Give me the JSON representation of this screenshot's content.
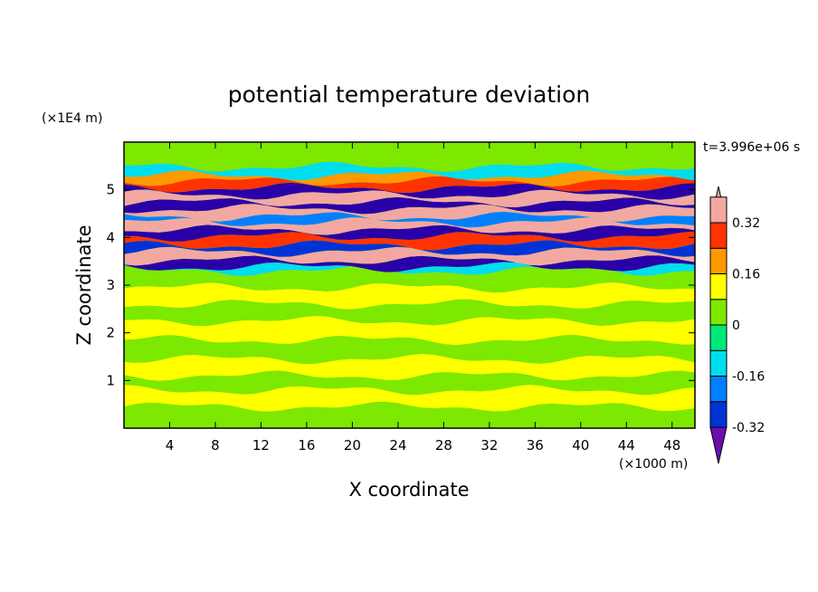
{
  "chart_data": {
    "type": "heatmap",
    "title": "potential temperature deviation",
    "time_label": "t=3.996e+06 s",
    "xlabel": "X coordinate",
    "ylabel": "Z coordinate",
    "x_unit": "(×1000 m)",
    "y_unit": "(×1E4 m)",
    "xlim": [
      0,
      50
    ],
    "ylim": [
      0,
      6
    ],
    "x_ticks": [
      "4",
      "8",
      "12",
      "16",
      "20",
      "24",
      "28",
      "32",
      "36",
      "40",
      "44",
      "48"
    ],
    "y_ticks": [
      "1",
      "2",
      "3",
      "4",
      "5"
    ],
    "colorbar": {
      "levels": [
        -0.4,
        -0.32,
        -0.24,
        -0.16,
        -0.08,
        0,
        0.08,
        0.16,
        0.24,
        0.32,
        0.4
      ],
      "labels": [
        "0.32",
        "0.16",
        "0",
        "-0.16",
        "-0.32"
      ],
      "label_values": [
        0.32,
        0.16,
        0,
        -0.16,
        -0.32
      ],
      "colors": [
        "#6a0fae",
        "#2a00a8",
        "#0033d6",
        "#0080ff",
        "#00ddee",
        "#00e87a",
        "#7de800",
        "#ffff00",
        "#ff9900",
        "#ff3300",
        "#f2a8a0"
      ],
      "extend": "both"
    },
    "bands": [
      {
        "z": 0.0,
        "h": 0.45,
        "v": 0.04
      },
      {
        "z": 0.45,
        "h": 0.35,
        "v": 0.1
      },
      {
        "z": 0.8,
        "h": 0.3,
        "v": 0.03
      },
      {
        "z": 1.1,
        "h": 0.35,
        "v": 0.1
      },
      {
        "z": 1.45,
        "h": 0.4,
        "v": 0.03
      },
      {
        "z": 1.85,
        "h": 0.4,
        "v": 0.1
      },
      {
        "z": 2.25,
        "h": 0.35,
        "v": 0.04
      },
      {
        "z": 2.6,
        "h": 0.35,
        "v": 0.1
      },
      {
        "z": 2.95,
        "h": 0.35,
        "v": 0.04
      },
      {
        "z": 3.3,
        "h": 0.08,
        "v": -0.12
      },
      {
        "z": 3.38,
        "h": 0.14,
        "v": -0.38
      },
      {
        "z": 3.52,
        "h": 0.18,
        "v": 0.42
      },
      {
        "z": 3.7,
        "h": 0.14,
        "v": -0.3
      },
      {
        "z": 3.84,
        "h": 0.18,
        "v": 0.3
      },
      {
        "z": 4.02,
        "h": 0.14,
        "v": -0.38
      },
      {
        "z": 4.16,
        "h": 0.16,
        "v": 0.42
      },
      {
        "z": 4.32,
        "h": 0.12,
        "v": -0.2
      },
      {
        "z": 4.44,
        "h": 0.16,
        "v": 0.36
      },
      {
        "z": 4.6,
        "h": 0.14,
        "v": -0.38
      },
      {
        "z": 4.74,
        "h": 0.16,
        "v": 0.42
      },
      {
        "z": 4.9,
        "h": 0.14,
        "v": -0.34
      },
      {
        "z": 5.04,
        "h": 0.14,
        "v": 0.28
      },
      {
        "z": 5.18,
        "h": 0.12,
        "v": 0.18
      },
      {
        "z": 5.3,
        "h": 0.18,
        "v": -0.1
      },
      {
        "z": 5.48,
        "h": 0.52,
        "v": 0.04
      }
    ]
  }
}
